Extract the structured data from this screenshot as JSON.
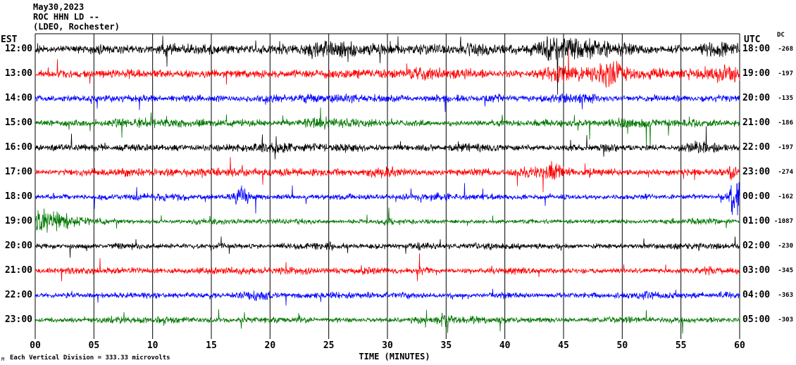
{
  "title": {
    "line1": "May30,2023",
    "line2": "ROC HHN LD --",
    "line3": "(LDEO, Rochester)"
  },
  "axes": {
    "left_header": "EST",
    "right_header": "UTC",
    "dc_header": "DC",
    "xlabel": "TIME (MINUTES)"
  },
  "footer": {
    "glyph": "M",
    "note": "Each Vertical Division =  333.33 microvolts"
  },
  "chart_data": {
    "type": "line",
    "title": "ROC HHN LD -- (LDEO, Rochester) May30,2023 helicorder seismogram",
    "xlabel": "TIME (MINUTES)",
    "x_range_minutes": [
      0,
      60
    ],
    "x_ticks": [
      "00",
      "05",
      "10",
      "15",
      "20",
      "25",
      "30",
      "35",
      "40",
      "45",
      "50",
      "55",
      "60"
    ],
    "left_axis": "EST",
    "right_axis": "UTC",
    "grid": true,
    "colors": {
      "black": "#000000",
      "red": "#ff0000",
      "blue": "#0000ff",
      "green": "#007700"
    },
    "rows": [
      {
        "est": "12:00",
        "utc": "18:00",
        "dc": "-268",
        "color": "black",
        "amp": 8,
        "events": [
          {
            "m": 26,
            "w": 4,
            "mult": 2.4
          },
          {
            "m": 44,
            "w": 1,
            "mult": 1.8
          },
          {
            "m": 47,
            "w": 5,
            "mult": 2.0
          },
          {
            "m": 58,
            "w": 2,
            "mult": 1.8
          }
        ]
      },
      {
        "est": "13:00",
        "utc": "19:00",
        "dc": "-197",
        "color": "red",
        "amp": 8,
        "events": [
          {
            "m": 46,
            "w": 4,
            "mult": 2.2
          },
          {
            "m": 49,
            "w": 1.5,
            "mult": 2.0
          },
          {
            "m": 58.5,
            "w": 2,
            "mult": 2.0
          }
        ]
      },
      {
        "est": "14:00",
        "utc": "20:00",
        "dc": "-135",
        "color": "blue",
        "amp": 6,
        "events": [
          {
            "m": 45,
            "w": 3,
            "mult": 1.6
          }
        ]
      },
      {
        "est": "15:00",
        "utc": "21:00",
        "dc": "-186",
        "color": "green",
        "amp": 6,
        "events": [
          {
            "m": 24,
            "w": 2,
            "mult": 1.5
          }
        ]
      },
      {
        "est": "16:00",
        "utc": "22:00",
        "dc": "-197",
        "color": "black",
        "amp": 6,
        "events": [
          {
            "m": 20,
            "w": 2,
            "mult": 1.6
          },
          {
            "m": 57,
            "w": 2,
            "mult": 1.5
          }
        ]
      },
      {
        "est": "17:00",
        "utc": "23:00",
        "dc": "-274",
        "color": "red",
        "amp": 6,
        "events": [
          {
            "m": 30,
            "w": 3,
            "mult": 1.4
          },
          {
            "m": 44,
            "w": 1.2,
            "mult": 2.6
          },
          {
            "m": 59.5,
            "w": 1,
            "mult": 2.5
          }
        ]
      },
      {
        "est": "18:00",
        "utc": "00:00",
        "dc": "-162",
        "color": "blue",
        "amp": 5,
        "events": [
          {
            "m": 17.5,
            "w": 0.8,
            "mult": 3.5
          },
          {
            "m": 34,
            "w": 2,
            "mult": 1.4
          },
          {
            "m": 59.7,
            "w": 0.7,
            "mult": 9
          }
        ]
      },
      {
        "est": "19:00",
        "utc": "01:00",
        "dc": "-1087",
        "color": "green",
        "amp": 4,
        "events": [
          {
            "m": 0.5,
            "w": 3.5,
            "mult": 6
          },
          {
            "m": 14.5,
            "w": 1.5,
            "mult": 2.0
          },
          {
            "m": 30,
            "w": 1,
            "mult": 1.7
          }
        ]
      },
      {
        "est": "20:00",
        "utc": "02:00",
        "dc": "-230",
        "color": "black",
        "amp": 5,
        "events": [
          {
            "m": 33,
            "w": 2,
            "mult": 1.4
          }
        ]
      },
      {
        "est": "21:00",
        "utc": "03:00",
        "dc": "-345",
        "color": "red",
        "amp": 5,
        "events": [
          {
            "m": 28.5,
            "w": 1.5,
            "mult": 1.8
          },
          {
            "m": 33,
            "w": 1,
            "mult": 2.2
          },
          {
            "m": 57,
            "w": 2,
            "mult": 1.5
          }
        ]
      },
      {
        "est": "22:00",
        "utc": "04:00",
        "dc": "-363",
        "color": "blue",
        "amp": 5,
        "events": [
          {
            "m": 19,
            "w": 1.5,
            "mult": 2.5
          },
          {
            "m": 40,
            "w": 2,
            "mult": 1.4
          },
          {
            "m": 52,
            "w": 1,
            "mult": 1.6
          }
        ]
      },
      {
        "est": "23:00",
        "utc": "05:00",
        "dc": "-303",
        "color": "green",
        "amp": 5,
        "events": [
          {
            "m": 20,
            "w": 2,
            "mult": 1.3
          },
          {
            "m": 35,
            "w": 0.8,
            "mult": 2.2
          }
        ]
      }
    ]
  }
}
